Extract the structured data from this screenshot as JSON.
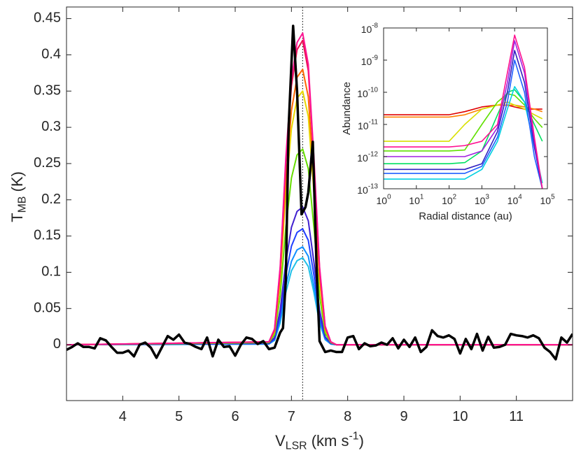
{
  "chart_data": [
    {
      "type": "line",
      "xlabel": [
        "V",
        "LSR",
        " (km s",
        "-1",
        ")"
      ],
      "ylabel": [
        "T",
        "MB",
        " (K)"
      ],
      "xlim": [
        3,
        12
      ],
      "ylim": [
        -0.077,
        0.466
      ],
      "xticks": [
        4,
        5,
        6,
        7,
        8,
        9,
        10,
        11
      ],
      "yticks": [
        0,
        0.05,
        0.1,
        0.15,
        0.2,
        0.25,
        0.3,
        0.35,
        0.4,
        0.45
      ],
      "vline": 7.2,
      "series": [
        {
          "color": "#20c0e8",
          "x": [
            3,
            6.6,
            6.7,
            6.8,
            6.9,
            7.0,
            7.1,
            7.2,
            7.3,
            7.4,
            7.5,
            7.6,
            7.7,
            7.8,
            12
          ],
          "values": [
            0,
            0.001,
            0.006,
            0.03,
            0.072,
            0.102,
            0.116,
            0.12,
            0.108,
            0.072,
            0.03,
            0.007,
            0.001,
            0,
            0
          ]
        },
        {
          "color": "#1090ff",
          "x": [
            3,
            6.6,
            6.7,
            6.8,
            6.9,
            7.0,
            7.1,
            7.2,
            7.3,
            7.4,
            7.5,
            7.6,
            7.7,
            7.8,
            12
          ],
          "values": [
            0,
            0.001,
            0.007,
            0.034,
            0.081,
            0.115,
            0.131,
            0.135,
            0.122,
            0.081,
            0.034,
            0.008,
            0.001,
            0,
            0
          ]
        },
        {
          "color": "#2040ff",
          "x": [
            3,
            6.6,
            6.7,
            6.8,
            6.9,
            7.0,
            7.1,
            7.2,
            7.3,
            7.4,
            7.5,
            7.6,
            7.7,
            7.8,
            12
          ],
          "values": [
            0,
            0.002,
            0.008,
            0.04,
            0.096,
            0.136,
            0.155,
            0.16,
            0.144,
            0.096,
            0.04,
            0.01,
            0.002,
            0,
            0
          ]
        },
        {
          "color": "#4020d0",
          "x": [
            3,
            6.6,
            6.7,
            6.8,
            6.9,
            7.0,
            7.1,
            7.2,
            7.3,
            7.4,
            7.5,
            7.6,
            7.7,
            7.8,
            12
          ],
          "values": [
            0,
            0.002,
            0.01,
            0.048,
            0.114,
            0.162,
            0.184,
            0.19,
            0.171,
            0.114,
            0.048,
            0.011,
            0.002,
            0,
            0
          ]
        },
        {
          "color": "#66dd00",
          "x": [
            3,
            6.6,
            6.7,
            6.8,
            6.9,
            7.0,
            7.1,
            7.2,
            7.3,
            7.4,
            7.5,
            7.6,
            7.7,
            7.8,
            12
          ],
          "values": [
            0,
            0.003,
            0.014,
            0.068,
            0.162,
            0.23,
            0.262,
            0.27,
            0.243,
            0.162,
            0.068,
            0.016,
            0.003,
            0,
            0
          ]
        },
        {
          "color": "#e8d800",
          "x": [
            3,
            6.6,
            6.7,
            6.8,
            6.9,
            7.0,
            7.1,
            7.2,
            7.3,
            7.4,
            7.5,
            7.6,
            7.7,
            7.8,
            12
          ],
          "values": [
            0,
            0.004,
            0.018,
            0.088,
            0.21,
            0.298,
            0.34,
            0.35,
            0.315,
            0.21,
            0.088,
            0.021,
            0.004,
            0,
            0
          ]
        },
        {
          "color": "#ff6600",
          "x": [
            3,
            6.6,
            6.7,
            6.8,
            6.9,
            7.0,
            7.1,
            7.2,
            7.3,
            7.4,
            7.5,
            7.6,
            7.7,
            7.8,
            12
          ],
          "values": [
            0,
            0.004,
            0.019,
            0.095,
            0.228,
            0.323,
            0.369,
            0.38,
            0.342,
            0.228,
            0.095,
            0.023,
            0.004,
            0,
            0
          ]
        },
        {
          "color": "#e81050",
          "x": [
            3,
            6.6,
            6.7,
            6.8,
            6.9,
            7.0,
            7.1,
            7.2,
            7.3,
            7.4,
            7.5,
            7.6,
            7.7,
            7.8,
            12
          ],
          "values": [
            0,
            0.004,
            0.021,
            0.105,
            0.252,
            0.357,
            0.407,
            0.42,
            0.378,
            0.252,
            0.105,
            0.025,
            0.004,
            0,
            0
          ]
        },
        {
          "color": "#ff1493",
          "x": [
            3,
            6.6,
            6.7,
            6.8,
            6.9,
            7.0,
            7.1,
            7.2,
            7.3,
            7.4,
            7.5,
            7.6,
            7.7,
            7.8,
            12
          ],
          "values": [
            0,
            0.004,
            0.022,
            0.108,
            0.258,
            0.366,
            0.417,
            0.43,
            0.387,
            0.258,
            0.108,
            0.026,
            0.004,
            0,
            0
          ]
        },
        {
          "color": "#000000",
          "width": 3.5,
          "x": [
            3.0,
            3.1,
            3.2,
            3.3,
            3.4,
            3.5,
            3.6,
            3.7,
            3.8,
            3.9,
            4.0,
            4.1,
            4.2,
            4.3,
            4.4,
            4.5,
            4.6,
            4.7,
            4.8,
            4.9,
            5.0,
            5.1,
            5.2,
            5.3,
            5.4,
            5.5,
            5.6,
            5.7,
            5.8,
            5.9,
            6.0,
            6.1,
            6.2,
            6.3,
            6.4,
            6.5,
            6.6,
            6.7,
            6.8,
            6.85,
            6.9,
            6.95,
            7.03,
            7.1,
            7.18,
            7.25,
            7.3,
            7.38,
            7.45,
            7.5,
            7.6,
            7.7,
            7.8,
            7.9,
            8.0,
            8.1,
            8.2,
            8.3,
            8.4,
            8.5,
            8.6,
            8.7,
            8.8,
            8.9,
            9.0,
            9.1,
            9.2,
            9.3,
            9.4,
            9.5,
            9.6,
            9.7,
            9.8,
            9.9,
            10.0,
            10.1,
            10.2,
            10.3,
            10.4,
            10.5,
            10.6,
            10.7,
            10.8,
            10.9,
            11.0,
            11.1,
            11.2,
            11.3,
            11.4,
            11.5,
            11.6,
            11.7,
            11.8,
            11.9,
            12.0
          ],
          "values": [
            -0.007,
            -0.003,
            0.002,
            -0.003,
            -0.003,
            -0.005,
            0.009,
            0.006,
            -0.003,
            -0.011,
            -0.011,
            -0.008,
            -0.016,
            0.0,
            0.003,
            -0.004,
            -0.018,
            -0.003,
            0.012,
            0.007,
            0.014,
            0.003,
            0.001,
            -0.003,
            -0.006,
            0.01,
            -0.016,
            0.007,
            -0.003,
            -0.002,
            -0.015,
            0.0,
            0.01,
            0.008,
            0.001,
            0.005,
            -0.006,
            -0.004,
            0.017,
            0.023,
            0.09,
            0.3,
            0.44,
            0.35,
            0.18,
            0.19,
            0.21,
            0.28,
            0.1,
            0.005,
            -0.01,
            -0.008,
            -0.01,
            -0.01,
            0.01,
            0.012,
            -0.006,
            0.002,
            -0.002,
            -0.001,
            0.003,
            0.0,
            0.009,
            -0.005,
            0.007,
            -0.003,
            0.01,
            -0.01,
            -0.003,
            0.02,
            0.012,
            0.01,
            0.013,
            0.008,
            -0.012,
            0.008,
            -0.006,
            0.015,
            -0.008,
            0.011,
            -0.004,
            -0.003,
            0.0,
            0.015,
            0.013,
            0.012,
            0.01,
            0.013,
            0.009,
            -0.004,
            -0.01,
            -0.02,
            0.01,
            0.003,
            0.015
          ]
        }
      ]
    },
    {
      "type": "line",
      "logx": true,
      "logy": true,
      "xlabel": "Radial distance (au)",
      "ylabel": "Abundance",
      "xlim": [
        1,
        100000
      ],
      "ylim": [
        1e-13,
        1e-08
      ],
      "xticks": [
        {
          "value": 1,
          "label": "10^0"
        },
        {
          "value": 10,
          "label": "10^1"
        },
        {
          "value": 100,
          "label": "10^2"
        },
        {
          "value": 1000,
          "label": "10^3"
        },
        {
          "value": 10000,
          "label": "10^4"
        },
        {
          "value": 100000,
          "label": "10^5"
        }
      ],
      "yticks": [
        {
          "value": 1e-13,
          "label": "10^-13"
        },
        {
          "value": 1e-12,
          "label": "10^-12"
        },
        {
          "value": 1e-11,
          "label": "10^-11"
        },
        {
          "value": 1e-10,
          "label": "10^-10"
        },
        {
          "value": 1e-09,
          "label": "10^-9"
        },
        {
          "value": 1e-08,
          "label": "10^-8"
        }
      ],
      "series": [
        {
          "color": "#e00000",
          "x": [
            1,
            100,
            300,
            1000,
            3000,
            6000,
            10000,
            20000,
            40000,
            70000
          ],
          "values": [
            2e-11,
            2e-11,
            2.5e-11,
            3.5e-11,
            4e-11,
            4e-11,
            3.5e-11,
            3e-11,
            3e-11,
            3e-11
          ]
        },
        {
          "color": "#ff8000",
          "x": [
            1,
            100,
            300,
            1000,
            3000,
            6000,
            10000,
            20000,
            40000,
            70000
          ],
          "values": [
            1.7e-11,
            1.7e-11,
            2e-11,
            3e-11,
            4e-11,
            4e-11,
            4e-11,
            3.5e-11,
            3e-11,
            2.5e-11
          ]
        },
        {
          "color": "#d8e000",
          "x": [
            1,
            100,
            300,
            1000,
            3000,
            6000,
            10000,
            20000,
            40000,
            70000
          ],
          "values": [
            3e-12,
            3e-12,
            1e-11,
            3e-11,
            4e-11,
            5e-11,
            4e-11,
            3e-11,
            2e-11,
            1.5e-11
          ]
        },
        {
          "color": "#60e000",
          "x": [
            1,
            100,
            300,
            1000,
            3000,
            6000,
            10000,
            20000,
            40000,
            70000
          ],
          "values": [
            1.5e-12,
            1.5e-12,
            1.6e-12,
            1e-11,
            5e-11,
            9e-11,
            8e-11,
            4e-11,
            1.5e-11,
            8e-12
          ]
        },
        {
          "color": "#00e060",
          "x": [
            1,
            100,
            300,
            1000,
            3000,
            6000,
            10000,
            20000,
            40000,
            70000
          ],
          "values": [
            6e-13,
            6e-13,
            6.5e-13,
            1.5e-12,
            2e-11,
            1e-10,
            1.2e-10,
            5e-11,
            1e-11,
            3e-12
          ]
        },
        {
          "color": "#00d0e0",
          "x": [
            1,
            100,
            300,
            1000,
            3000,
            6000,
            10000,
            20000,
            40000,
            70000
          ],
          "values": [
            2e-13,
            2e-13,
            2e-13,
            4e-13,
            3e-12,
            3e-11,
            1.5e-10,
            5e-11,
            2e-12,
            1.5e-13
          ]
        },
        {
          "color": "#2060ff",
          "x": [
            1,
            100,
            300,
            1000,
            3000,
            6000,
            10000,
            20000,
            40000,
            70000
          ],
          "values": [
            3e-13,
            3e-13,
            3e-13,
            5e-13,
            4e-12,
            5e-11,
            1e-09,
            1e-10,
            1e-12,
            1e-13
          ]
        },
        {
          "color": "#3020c0",
          "x": [
            1,
            100,
            300,
            1000,
            3000,
            6000,
            10000,
            20000,
            40000,
            70000
          ],
          "values": [
            4e-13,
            4e-13,
            4e-13,
            6e-13,
            6e-12,
            1e-10,
            2e-09,
            2e-10,
            2e-12,
            1e-13
          ]
        },
        {
          "color": "#a020e0",
          "x": [
            1,
            100,
            300,
            1000,
            3000,
            6000,
            10000,
            20000,
            40000,
            70000
          ],
          "values": [
            1e-12,
            1e-12,
            1e-12,
            1.5e-12,
            8e-12,
            2e-10,
            4e-09,
            4e-10,
            3e-12,
            1e-13
          ]
        },
        {
          "color": "#ff1090",
          "x": [
            1,
            100,
            300,
            1000,
            3000,
            6000,
            10000,
            20000,
            40000,
            70000
          ],
          "values": [
            2e-12,
            2e-12,
            2.2e-12,
            3e-12,
            1e-11,
            4e-10,
            6e-09,
            6e-10,
            4e-12,
            1e-13
          ]
        }
      ]
    }
  ]
}
